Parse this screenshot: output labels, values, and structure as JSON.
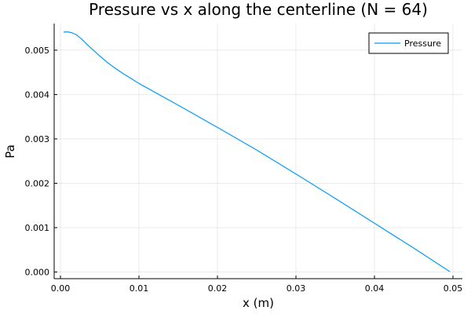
{
  "chart_data": {
    "type": "line",
    "title": "Pressure vs x along the centerline (N = 64)",
    "xlabel": "x (m)",
    "ylabel": "Pa",
    "xlim": [
      -0.0008,
      0.0512
    ],
    "ylim": [
      -0.00015,
      0.0056
    ],
    "xticks": [
      0.0,
      0.01,
      0.02,
      0.03,
      0.04,
      0.05
    ],
    "xtick_labels": [
      "0.00",
      "0.01",
      "0.02",
      "0.03",
      "0.04",
      "0.05"
    ],
    "yticks": [
      0.0,
      0.001,
      0.002,
      0.003,
      0.004,
      0.005
    ],
    "ytick_labels": [
      "0.000",
      "0.001",
      "0.002",
      "0.003",
      "0.004",
      "0.005"
    ],
    "grid": true,
    "legend": {
      "position": "top-right",
      "entries": [
        "Pressure"
      ]
    },
    "series": [
      {
        "name": "Pressure",
        "color": "#009af9",
        "x": [
          0.0004,
          0.001,
          0.0015,
          0.002,
          0.0025,
          0.003,
          0.0035,
          0.004,
          0.005,
          0.006,
          0.007,
          0.008,
          0.01,
          0.015,
          0.02,
          0.025,
          0.03,
          0.035,
          0.04,
          0.045,
          0.0496
        ],
        "y": [
          0.00541,
          0.00541,
          0.00539,
          0.00535,
          0.00528,
          0.0052,
          0.00511,
          0.00503,
          0.00487,
          0.00472,
          0.00459,
          0.00447,
          0.00425,
          0.00376,
          0.00326,
          0.00275,
          0.00221,
          0.00166,
          0.0011,
          0.00054,
          1e-05
        ]
      }
    ]
  }
}
